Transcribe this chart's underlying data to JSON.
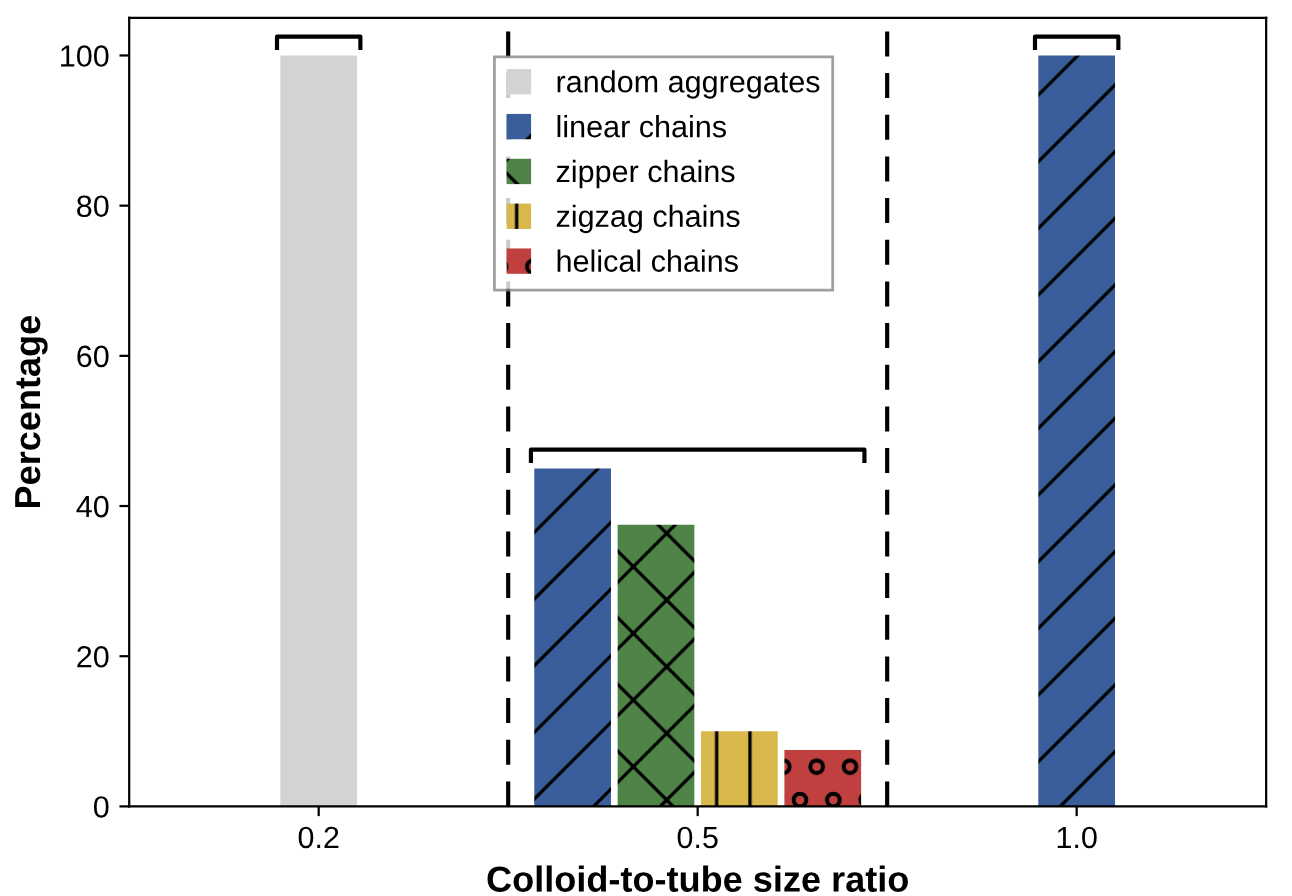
{
  "chart_data": {
    "type": "bar",
    "xlabel": "Colloid-to-tube size ratio",
    "ylabel": "Percentage",
    "categories": [
      "0.2",
      "0.5",
      "1.0"
    ],
    "series": [
      {
        "name": "random aggregates",
        "color": "#d3d3d3",
        "values": [
          100,
          null,
          null
        ]
      },
      {
        "name": "linear chains",
        "color": "#3a5e9c",
        "values": [
          null,
          45,
          100
        ]
      },
      {
        "name": "zipper chains",
        "color": "#4f8447",
        "values": [
          null,
          37.5,
          null
        ]
      },
      {
        "name": "zigzag chains",
        "color": "#d8b84a",
        "values": [
          null,
          10,
          null
        ]
      },
      {
        "name": "helical chains",
        "color": "#c0403f",
        "values": [
          null,
          7.5,
          null
        ]
      }
    ],
    "ylim": [
      0,
      105
    ],
    "yticks": [
      0,
      20,
      40,
      60,
      80,
      100
    ],
    "grid": false,
    "legend": "top"
  }
}
